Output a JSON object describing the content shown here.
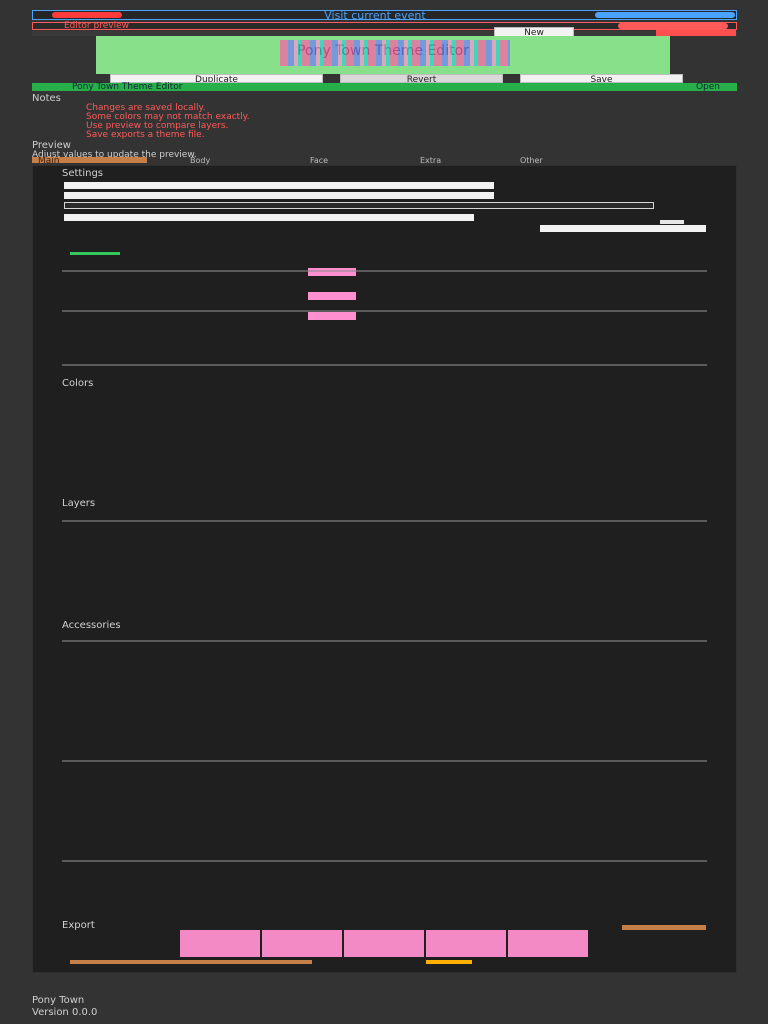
{
  "top": {
    "title": "Visit current event",
    "subtitle": "Editor preview",
    "new_label": "New",
    "banner_text": "Pony Town Theme Editor",
    "duplicate_label": "Duplicate",
    "revert_label": "Revert",
    "save_label": "Save"
  },
  "tabs": {
    "active_path": "Pony Town Theme Editor",
    "right_label": "Open"
  },
  "notes": {
    "heading": "Notes",
    "lines": [
      "Changes are saved locally.",
      "Some colors may not match exactly.",
      "Use preview to compare layers.",
      "Save exports a theme file."
    ],
    "footer_heading": "Preview",
    "footer_line": "Adjust values to update the preview."
  },
  "toolbar": {
    "tab1": "Main",
    "tab2": "Body",
    "tab3": "Face",
    "tab4": "Extra",
    "tab5": "Other"
  },
  "editor": {
    "section1": "Settings",
    "section2": "Colors",
    "section3": "Layers",
    "section4": "Accessories",
    "section5": "Export"
  },
  "footer": {
    "line1": "Pony Town",
    "line2": "Version 0.0.0"
  }
}
